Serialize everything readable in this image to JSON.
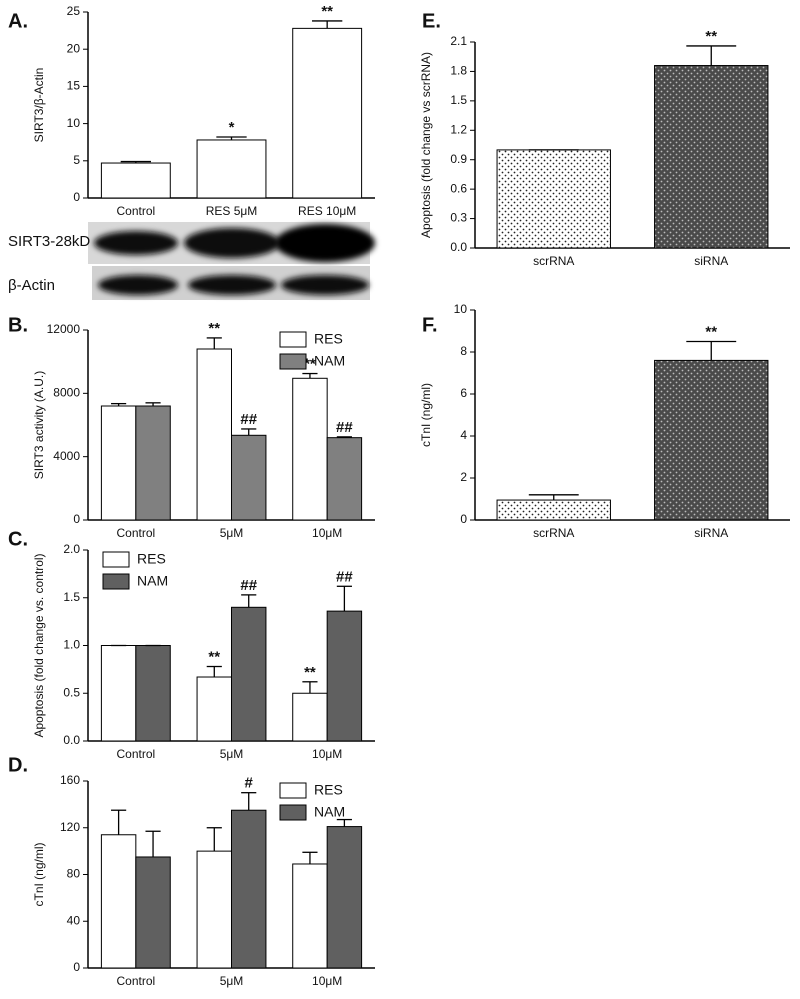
{
  "chart_data": [
    {
      "type": "bar",
      "panel": "A.",
      "ylabel": "SIRT3/β-Actin",
      "categories": [
        "Control",
        "RES 5μM",
        "RES 10μM"
      ],
      "values": [
        4.7,
        7.8,
        22.8
      ],
      "errors": [
        0.2,
        0.4,
        1.0
      ],
      "annotations": [
        null,
        "*",
        "**"
      ],
      "color": "#ffffff",
      "ylim": [
        0,
        25
      ],
      "yticks": [
        0,
        5,
        10,
        15,
        20,
        25
      ],
      "blot_labels": [
        "SIRT3-28kD",
        "β-Actin"
      ]
    },
    {
      "type": "bar",
      "panel": "B.",
      "ylabel": "SIRT3 activity (A.U.)",
      "categories": [
        "Control",
        "5μM",
        "10μM"
      ],
      "legend": "upper right",
      "series": [
        {
          "name": "RES",
          "color": "#ffffff",
          "values": [
            7200,
            10800,
            8950
          ],
          "errors": [
            150,
            700,
            300
          ],
          "annotations": [
            null,
            "**",
            "**"
          ]
        },
        {
          "name": "NAM",
          "color": "#808080",
          "values": [
            7200,
            5350,
            5200
          ],
          "errors": [
            200,
            400,
            50
          ],
          "annotations": [
            null,
            "##",
            "##"
          ]
        }
      ],
      "ylim": [
        0,
        12000
      ],
      "yticks": [
        0,
        4000,
        8000,
        12000
      ]
    },
    {
      "type": "bar",
      "panel": "C.",
      "ylabel": "Apoptosis (fold change vs. control)",
      "categories": [
        "Control",
        "5μM",
        "10μM"
      ],
      "legend": "upper left",
      "series": [
        {
          "name": "RES",
          "color": "#ffffff",
          "values": [
            1.0,
            0.67,
            0.5
          ],
          "errors": [
            0,
            0.11,
            0.12
          ],
          "annotations": [
            null,
            "**",
            "**"
          ]
        },
        {
          "name": "NAM",
          "color": "#606060",
          "values": [
            1.0,
            1.4,
            1.36
          ],
          "errors": [
            0,
            0.13,
            0.26
          ],
          "annotations": [
            null,
            "##",
            "##"
          ]
        }
      ],
      "ylim": [
        0,
        2
      ],
      "yticks": [
        {
          "value": 0,
          "label": "0.0"
        },
        0.5,
        {
          "value": 1,
          "label": "1.0"
        },
        1.5,
        {
          "value": 2,
          "label": "2.0"
        }
      ]
    },
    {
      "type": "bar",
      "panel": "D.",
      "ylabel": "cTnI (ng/ml)",
      "categories": [
        "Control",
        "5μM",
        "10μM"
      ],
      "legend": "upper right",
      "series": [
        {
          "name": "RES",
          "color": "#ffffff",
          "values": [
            114,
            100,
            89
          ],
          "errors": [
            21,
            20,
            10
          ],
          "annotations": [
            null,
            null,
            null
          ]
        },
        {
          "name": "NAM",
          "color": "#606060",
          "values": [
            95,
            135,
            121
          ],
          "errors": [
            22,
            15,
            6
          ],
          "annotations": [
            null,
            "#",
            null
          ]
        }
      ],
      "ylim": [
        0,
        160
      ],
      "yticks": [
        0,
        40,
        80,
        120,
        160
      ]
    },
    {
      "type": "bar",
      "panel": "E.",
      "ylabel": "Apoptosis (fold change vs scrRNA)",
      "categories": [
        "scrRNA",
        "siRNA"
      ],
      "pattern": "dots",
      "values": [
        1.0,
        1.86
      ],
      "errors": [
        0,
        0.2
      ],
      "annotations": [
        null,
        "**"
      ],
      "colors": [
        "#ffffff",
        "#4a4a4a"
      ],
      "ylim": [
        0,
        2.1
      ],
      "yticks": [
        {
          "value": 0,
          "label": "0.0"
        },
        0.3,
        0.6,
        0.9,
        1.2,
        1.5,
        1.8,
        2.1
      ]
    },
    {
      "type": "bar",
      "panel": "F.",
      "ylabel": "cTnI (ng/ml)",
      "categories": [
        "scrRNA",
        "siRNA"
      ],
      "pattern": "dots",
      "values": [
        0.95,
        7.6
      ],
      "errors": [
        0.25,
        0.9
      ],
      "annotations": [
        null,
        "**"
      ],
      "colors": [
        "#ffffff",
        "#4a4a4a"
      ],
      "ylim": [
        0,
        10
      ],
      "yticks": [
        0,
        2,
        4,
        6,
        8,
        10
      ]
    }
  ]
}
